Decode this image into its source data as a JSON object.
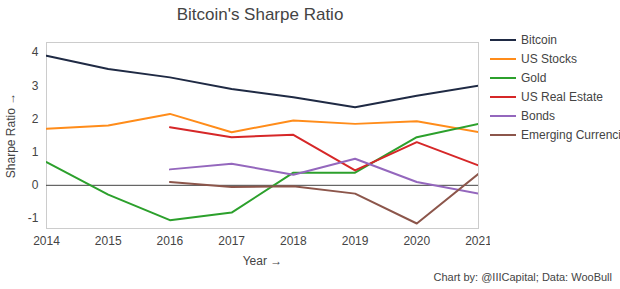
{
  "chart_data": {
    "type": "line",
    "title": "Bitcoin's Sharpe Ratio",
    "x_label": "Year",
    "y_label": "Sharpe Ratio",
    "caption": "Chart by: @IIICapital; Data: WooBull",
    "x": [
      2014,
      2015,
      2016,
      2017,
      2018,
      2019,
      2020,
      2021
    ],
    "xlim": [
      2014,
      2021
    ],
    "xticks": [
      2014,
      2015,
      2016,
      2017,
      2018,
      2019,
      2020,
      2021
    ],
    "ylim": [
      -1.3,
      4.3
    ],
    "yticks": [
      -1,
      0,
      1,
      2,
      3,
      4
    ],
    "grid": false,
    "legend": "top-right",
    "series": [
      {
        "name": "Bitcoin",
        "color": "#1f2a44",
        "values": [
          3.9,
          3.5,
          3.25,
          2.9,
          2.65,
          2.35,
          2.7,
          3.0
        ]
      },
      {
        "name": "US Stocks",
        "color": "#ff8c1a",
        "values": [
          1.7,
          1.8,
          2.15,
          1.6,
          1.95,
          1.85,
          1.93,
          1.6
        ]
      },
      {
        "name": "Gold",
        "color": "#2ca02c",
        "values": [
          0.7,
          -0.28,
          -1.05,
          -0.82,
          0.38,
          0.38,
          1.45,
          1.85
        ]
      },
      {
        "name": "US Real Estate",
        "color": "#d62728",
        "values": [
          null,
          null,
          1.75,
          1.45,
          1.52,
          0.45,
          1.3,
          0.6
        ]
      },
      {
        "name": "Bonds",
        "color": "#9467bd",
        "values": [
          null,
          null,
          0.48,
          0.65,
          0.32,
          0.8,
          0.1,
          -0.25
        ]
      },
      {
        "name": "Emerging Currencies",
        "color": "#8c564b",
        "values": [
          null,
          null,
          0.1,
          -0.05,
          -0.03,
          -0.25,
          -1.15,
          0.35
        ]
      }
    ]
  }
}
